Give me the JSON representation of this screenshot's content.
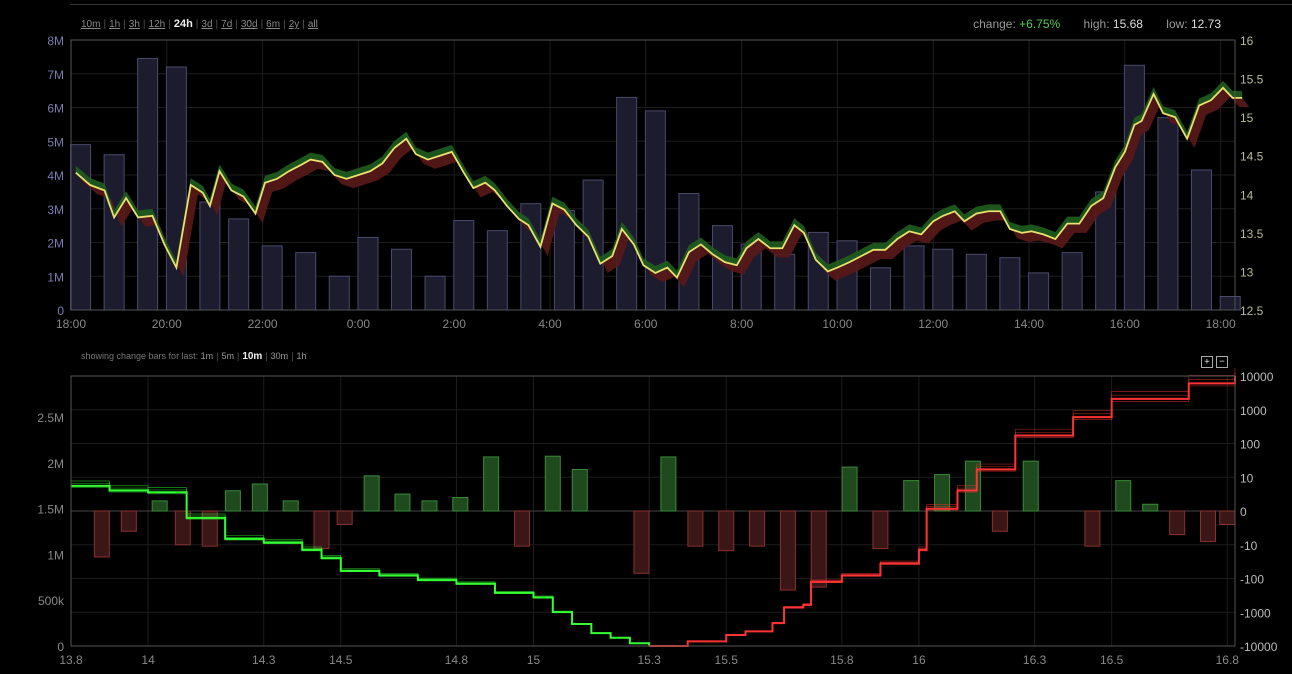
{
  "range_links": [
    {
      "label": "10m",
      "active": false
    },
    {
      "label": "1h",
      "active": false
    },
    {
      "label": "3h",
      "active": false
    },
    {
      "label": "12h",
      "active": false
    },
    {
      "label": "24h",
      "active": true
    },
    {
      "label": "3d",
      "active": false
    },
    {
      "label": "7d",
      "active": false
    },
    {
      "label": "30d",
      "active": false
    },
    {
      "label": "6m",
      "active": false
    },
    {
      "label": "2y",
      "active": false
    },
    {
      "label": "all",
      "active": false
    }
  ],
  "stats": {
    "change_label": "change:",
    "change_value": "+6.75%",
    "high_label": "high:",
    "high_value": "15.68",
    "low_label": "low:",
    "low_value": "12.73"
  },
  "change_bars": {
    "label": "showing change bars for last:",
    "options": [
      {
        "label": "1m",
        "active": false
      },
      {
        "label": "5m",
        "active": false
      },
      {
        "label": "10m",
        "active": true
      },
      {
        "label": "30m",
        "active": false
      },
      {
        "label": "1h",
        "active": false
      }
    ],
    "zoom_in": "+",
    "zoom_out": "−"
  },
  "colors": {
    "price_line": "#e8e070",
    "band_up": "#1f5e1f",
    "band_down": "#5a1818",
    "volume_bar": "#1c1c2e",
    "volume_bar_stroke": "#4a4a6a",
    "bar_up": "#1e4a1e",
    "bar_up_stroke": "#3a8a3a",
    "bar_down": "#3a1616",
    "bar_down_stroke": "#8a3030",
    "bid_line": "#3f3",
    "ask_line": "#f33"
  },
  "chart_data": [
    {
      "type": "line",
      "name": "price-volume",
      "x_ticks": [
        "18:00",
        "20:00",
        "22:00",
        "0:00",
        "2:00",
        "4:00",
        "6:00",
        "8:00",
        "10:00",
        "12:00",
        "14:00",
        "16:00",
        "18:00"
      ],
      "y_left_ticks": [
        "0",
        "1M",
        "2M",
        "3M",
        "4M",
        "5M",
        "6M",
        "7M",
        "8M"
      ],
      "y_right_ticks": [
        "12.5",
        "13",
        "13.5",
        "14",
        "14.5",
        "15",
        "15.5",
        "16"
      ],
      "y_left_range": [
        0,
        8000000
      ],
      "y_right_range": [
        12.5,
        16
      ],
      "x_range_hours": [
        0,
        24.3
      ],
      "volume_bars": [
        {
          "x": 0.2,
          "v": 4900000
        },
        {
          "x": 0.9,
          "v": 4600000
        },
        {
          "x": 1.6,
          "v": 7450000
        },
        {
          "x": 2.2,
          "v": 7200000
        },
        {
          "x": 2.9,
          "v": 3200000
        },
        {
          "x": 3.5,
          "v": 2700000
        },
        {
          "x": 4.2,
          "v": 1900000
        },
        {
          "x": 4.9,
          "v": 1700000
        },
        {
          "x": 5.6,
          "v": 1000000
        },
        {
          "x": 6.2,
          "v": 2150000
        },
        {
          "x": 6.9,
          "v": 1800000
        },
        {
          "x": 7.6,
          "v": 1000000
        },
        {
          "x": 8.2,
          "v": 2650000
        },
        {
          "x": 8.9,
          "v": 2350000
        },
        {
          "x": 9.6,
          "v": 3150000
        },
        {
          "x": 10.3,
          "v": 2950000
        },
        {
          "x": 10.9,
          "v": 3850000
        },
        {
          "x": 11.6,
          "v": 6300000
        },
        {
          "x": 12.2,
          "v": 5900000
        },
        {
          "x": 12.9,
          "v": 3450000
        },
        {
          "x": 13.6,
          "v": 2500000
        },
        {
          "x": 14.2,
          "v": 1950000
        },
        {
          "x": 14.9,
          "v": 1650000
        },
        {
          "x": 15.6,
          "v": 2300000
        },
        {
          "x": 16.2,
          "v": 2050000
        },
        {
          "x": 16.9,
          "v": 1250000
        },
        {
          "x": 17.6,
          "v": 1900000
        },
        {
          "x": 18.2,
          "v": 1800000
        },
        {
          "x": 18.9,
          "v": 1650000
        },
        {
          "x": 19.6,
          "v": 1550000
        },
        {
          "x": 20.2,
          "v": 1100000
        },
        {
          "x": 20.9,
          "v": 1700000
        },
        {
          "x": 21.6,
          "v": 3500000
        },
        {
          "x": 22.2,
          "v": 7250000
        },
        {
          "x": 22.9,
          "v": 5700000
        },
        {
          "x": 23.6,
          "v": 4150000
        },
        {
          "x": 24.2,
          "v": 400000
        }
      ],
      "price": [
        [
          0.1,
          14.28
        ],
        [
          0.4,
          14.12
        ],
        [
          0.7,
          14.05
        ],
        [
          0.9,
          13.7
        ],
        [
          1.15,
          13.95
        ],
        [
          1.4,
          13.7
        ],
        [
          1.7,
          13.72
        ],
        [
          1.95,
          13.35
        ],
        [
          2.2,
          13.05
        ],
        [
          2.5,
          14.12
        ],
        [
          2.75,
          14.02
        ],
        [
          2.9,
          13.85
        ],
        [
          3.1,
          14.3
        ],
        [
          3.35,
          14.05
        ],
        [
          3.6,
          13.97
        ],
        [
          3.85,
          13.75
        ],
        [
          4.05,
          14.15
        ],
        [
          4.3,
          14.2
        ],
        [
          4.55,
          14.3
        ],
        [
          4.8,
          14.38
        ],
        [
          5.0,
          14.45
        ],
        [
          5.25,
          14.42
        ],
        [
          5.5,
          14.25
        ],
        [
          5.75,
          14.2
        ],
        [
          6.0,
          14.25
        ],
        [
          6.25,
          14.3
        ],
        [
          6.5,
          14.4
        ],
        [
          6.75,
          14.6
        ],
        [
          7.0,
          14.72
        ],
        [
          7.2,
          14.52
        ],
        [
          7.45,
          14.45
        ],
        [
          7.7,
          14.5
        ],
        [
          7.95,
          14.55
        ],
        [
          8.2,
          14.28
        ],
        [
          8.4,
          14.08
        ],
        [
          8.65,
          14.15
        ],
        [
          8.85,
          14.05
        ],
        [
          9.1,
          13.85
        ],
        [
          9.35,
          13.68
        ],
        [
          9.55,
          13.6
        ],
        [
          9.8,
          13.32
        ],
        [
          10.05,
          13.88
        ],
        [
          10.3,
          13.8
        ],
        [
          10.55,
          13.6
        ],
        [
          10.8,
          13.45
        ],
        [
          11.05,
          13.1
        ],
        [
          11.3,
          13.2
        ],
        [
          11.5,
          13.55
        ],
        [
          11.75,
          13.35
        ],
        [
          11.95,
          13.08
        ],
        [
          12.2,
          12.98
        ],
        [
          12.45,
          13.05
        ],
        [
          12.65,
          12.92
        ],
        [
          12.9,
          13.25
        ],
        [
          13.15,
          13.35
        ],
        [
          13.4,
          13.22
        ],
        [
          13.65,
          13.12
        ],
        [
          13.9,
          13.08
        ],
        [
          14.1,
          13.3
        ],
        [
          14.35,
          13.42
        ],
        [
          14.6,
          13.3
        ],
        [
          14.85,
          13.3
        ],
        [
          15.1,
          13.6
        ],
        [
          15.3,
          13.5
        ],
        [
          15.55,
          13.15
        ],
        [
          15.8,
          13.0
        ],
        [
          16.0,
          13.05
        ],
        [
          16.25,
          13.12
        ],
        [
          16.5,
          13.2
        ],
        [
          16.75,
          13.28
        ],
        [
          17.0,
          13.28
        ],
        [
          17.25,
          13.42
        ],
        [
          17.5,
          13.52
        ],
        [
          17.75,
          13.48
        ],
        [
          18.0,
          13.65
        ],
        [
          18.2,
          13.72
        ],
        [
          18.45,
          13.78
        ],
        [
          18.65,
          13.65
        ],
        [
          18.9,
          13.75
        ],
        [
          19.15,
          13.78
        ],
        [
          19.4,
          13.78
        ],
        [
          19.6,
          13.55
        ],
        [
          19.85,
          13.5
        ],
        [
          20.05,
          13.52
        ],
        [
          20.3,
          13.48
        ],
        [
          20.55,
          13.42
        ],
        [
          20.8,
          13.62
        ],
        [
          21.05,
          13.62
        ],
        [
          21.3,
          13.85
        ],
        [
          21.55,
          13.95
        ],
        [
          21.8,
          14.35
        ],
        [
          22.0,
          14.55
        ],
        [
          22.2,
          14.9
        ],
        [
          22.35,
          14.95
        ],
        [
          22.6,
          15.3
        ],
        [
          22.8,
          15.05
        ],
        [
          23.05,
          15.0
        ],
        [
          23.3,
          14.72
        ],
        [
          23.55,
          15.15
        ],
        [
          23.8,
          15.22
        ],
        [
          24.05,
          15.38
        ],
        [
          24.25,
          15.25
        ],
        [
          24.45,
          15.25
        ]
      ]
    },
    {
      "type": "bar",
      "name": "market-depth-change",
      "x_ticks": [
        "13.8",
        "14",
        "14.3",
        "14.5",
        "14.8",
        "15",
        "15.3",
        "15.5",
        "15.8",
        "16",
        "16.3",
        "16.5",
        "16.8"
      ],
      "y_left_ticks": [
        "0",
        "500k",
        "1M",
        "1.5M",
        "2M",
        "2.5M"
      ],
      "y_right_ticks": [
        "-10000",
        "-1000",
        "-100",
        "-10",
        "0",
        "10",
        "100",
        "1000",
        "10000"
      ],
      "x_range": [
        13.8,
        16.82
      ],
      "y_left_range": [
        0,
        2950000
      ],
      "bars": [
        {
          "x": 13.88,
          "v": -23
        },
        {
          "x": 13.95,
          "v": -6
        },
        {
          "x": 14.03,
          "v": 3
        },
        {
          "x": 14.09,
          "v": -10
        },
        {
          "x": 14.16,
          "v": -11
        },
        {
          "x": 14.22,
          "v": 6
        },
        {
          "x": 14.29,
          "v": 8
        },
        {
          "x": 14.37,
          "v": 3
        },
        {
          "x": 14.45,
          "v": -13
        },
        {
          "x": 14.51,
          "v": -4
        },
        {
          "x": 14.58,
          "v": 11
        },
        {
          "x": 14.66,
          "v": 5
        },
        {
          "x": 14.73,
          "v": 3
        },
        {
          "x": 14.81,
          "v": 4
        },
        {
          "x": 14.89,
          "v": 40
        },
        {
          "x": 14.97,
          "v": -11
        },
        {
          "x": 15.05,
          "v": 42
        },
        {
          "x": 15.12,
          "v": 17
        },
        {
          "x": 15.2,
          "v": 0
        },
        {
          "x": 15.28,
          "v": -70
        },
        {
          "x": 15.35,
          "v": 40
        },
        {
          "x": 15.42,
          "v": -11
        },
        {
          "x": 15.5,
          "v": -15
        },
        {
          "x": 15.58,
          "v": -11
        },
        {
          "x": 15.66,
          "v": -220
        },
        {
          "x": 15.74,
          "v": -180
        },
        {
          "x": 15.82,
          "v": 20
        },
        {
          "x": 15.9,
          "v": -13
        },
        {
          "x": 15.98,
          "v": 9
        },
        {
          "x": 16.06,
          "v": 12
        },
        {
          "x": 16.14,
          "v": 30
        },
        {
          "x": 16.21,
          "v": -6
        },
        {
          "x": 16.29,
          "v": 30
        },
        {
          "x": 16.36,
          "v": 0
        },
        {
          "x": 16.45,
          "v": -11
        },
        {
          "x": 16.53,
          "v": 9
        },
        {
          "x": 16.6,
          "v": 2
        },
        {
          "x": 16.67,
          "v": -7
        },
        {
          "x": 16.75,
          "v": -9
        },
        {
          "x": 16.8,
          "v": -4
        }
      ],
      "bids": [
        [
          13.8,
          1750000
        ],
        [
          13.9,
          1700000
        ],
        [
          14.0,
          1680000
        ],
        [
          14.1,
          1400000
        ],
        [
          14.2,
          1170000
        ],
        [
          14.3,
          1130000
        ],
        [
          14.4,
          1050000
        ],
        [
          14.45,
          960000
        ],
        [
          14.5,
          820000
        ],
        [
          14.6,
          770000
        ],
        [
          14.7,
          720000
        ],
        [
          14.8,
          680000
        ],
        [
          14.9,
          580000
        ],
        [
          15.0,
          530000
        ],
        [
          15.05,
          370000
        ],
        [
          15.1,
          240000
        ],
        [
          15.15,
          140000
        ],
        [
          15.2,
          90000
        ],
        [
          15.25,
          30000
        ],
        [
          15.3,
          0
        ]
      ],
      "asks": [
        [
          15.3,
          0
        ],
        [
          15.4,
          50000
        ],
        [
          15.5,
          120000
        ],
        [
          15.55,
          160000
        ],
        [
          15.62,
          250000
        ],
        [
          15.65,
          420000
        ],
        [
          15.7,
          450000
        ],
        [
          15.72,
          700000
        ],
        [
          15.8,
          770000
        ],
        [
          15.9,
          900000
        ],
        [
          16.0,
          1050000
        ],
        [
          16.02,
          1500000
        ],
        [
          16.1,
          1700000
        ],
        [
          16.15,
          1930000
        ],
        [
          16.25,
          2300000
        ],
        [
          16.4,
          2500000
        ],
        [
          16.5,
          2700000
        ],
        [
          16.7,
          2870000
        ],
        [
          16.82,
          2950000
        ]
      ]
    }
  ]
}
